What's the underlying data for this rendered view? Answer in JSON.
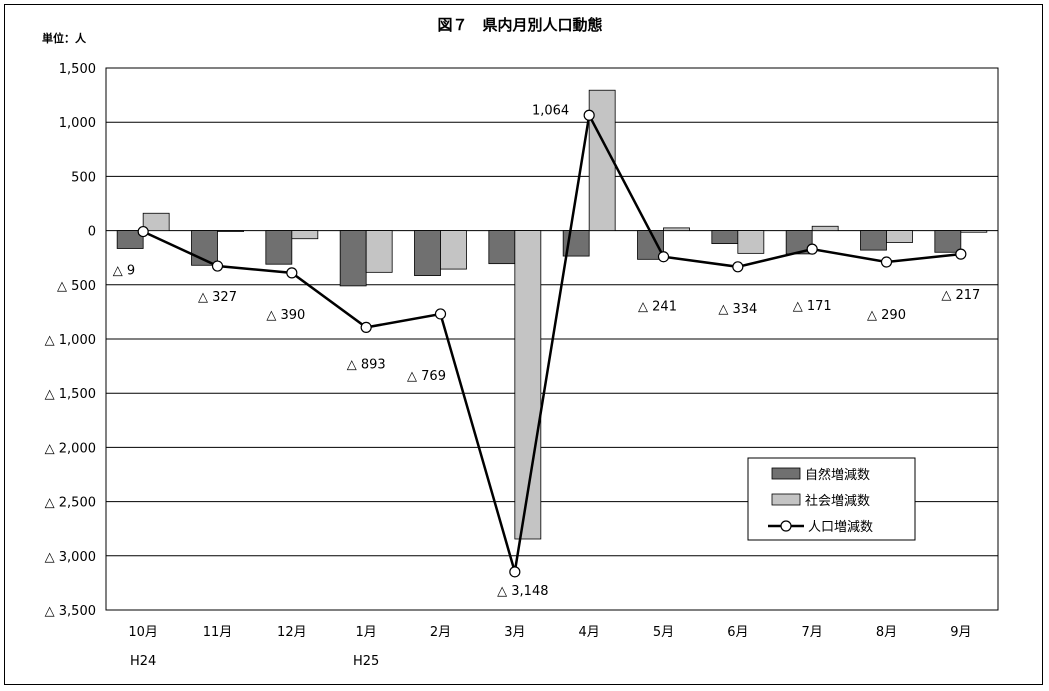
{
  "chart_data": {
    "type": "bar",
    "title": "図７　県内月別人口動態",
    "unit_label": "単位：人",
    "categories": [
      "10月",
      "11月",
      "12月",
      "1月",
      "2月",
      "3月",
      "4月",
      "5月",
      "6月",
      "7月",
      "8月",
      "9月"
    ],
    "year_labels": [
      "H24",
      "",
      "",
      "H25",
      "",
      "",
      "",
      "",
      "",
      "",
      "",
      ""
    ],
    "ylim": [
      -3500,
      1500
    ],
    "yticks": [
      1500,
      1000,
      500,
      0,
      -500,
      -1000,
      -1500,
      -2000,
      -2500,
      -3000,
      -3500
    ],
    "ytick_labels": [
      "1,500",
      "1,000",
      "500",
      "0",
      "△ 500",
      "△ 1,000",
      "△ 1,500",
      "△ 2,000",
      "△ 2,500",
      "△ 3,000",
      "△ 3,500"
    ],
    "grid": true,
    "legend_position": "bottom-right",
    "series": [
      {
        "name": "自然増減数",
        "kind": "bar",
        "color": "#707070",
        "values": [
          -165,
          -320,
          -310,
          -510,
          -415,
          -305,
          -235,
          -265,
          -120,
          -215,
          -180,
          -200
        ]
      },
      {
        "name": "社会増減数",
        "kind": "bar",
        "color": "#c4c4c4",
        "values": [
          160,
          -5,
          -75,
          -385,
          -355,
          -2845,
          1295,
          25,
          -210,
          40,
          -110,
          -15
        ]
      },
      {
        "name": "人口増減数",
        "kind": "line",
        "color": "#000000",
        "values": [
          -9,
          -327,
          -390,
          -893,
          -769,
          -3148,
          1064,
          -241,
          -334,
          -171,
          -290,
          -217
        ]
      }
    ],
    "data_labels": [
      "△ 9",
      "△ 327",
      "△ 390",
      "△ 893",
      "△ 769",
      "△ 3,148",
      "1,064",
      "△ 241",
      "△ 334",
      "△ 171",
      "△ 290",
      "△ 217"
    ]
  }
}
